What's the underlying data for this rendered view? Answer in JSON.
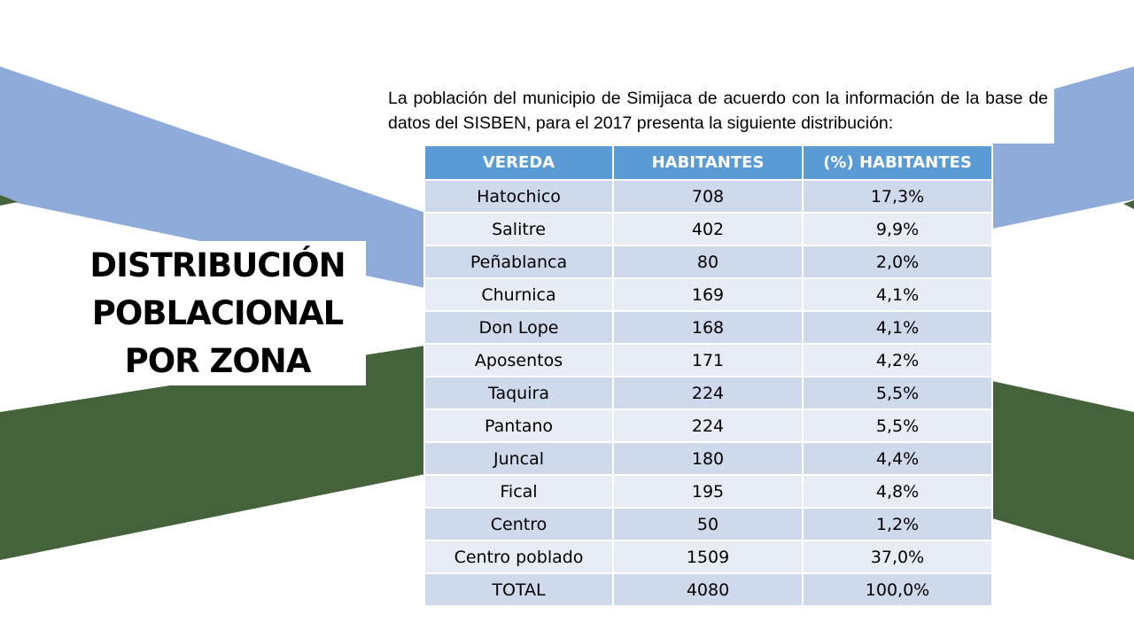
{
  "colors": {
    "blue_band": "#8eabd9",
    "green_band": "#44633a",
    "header_bg": "#5b9bd5",
    "row_odd": "#cfd9ec",
    "row_even": "#e8ecf5"
  },
  "title": {
    "line1": "DISTRIBUCIÓN",
    "line2": "POBLACIONAL",
    "line3": "POR ZONA"
  },
  "intro": {
    "text": "La población del municipio de Simijaca de acuerdo con la información de la base de datos del SISBEN, para el 2017 presenta la siguiente distribución:"
  },
  "table": {
    "headers": [
      "VEREDA",
      "HABITANTES",
      "(%) HABITANTES"
    ],
    "rows": [
      [
        "Hatochico",
        "708",
        "17,3%"
      ],
      [
        "Salitre",
        "402",
        "9,9%"
      ],
      [
        "Peñablanca",
        "80",
        "2,0%"
      ],
      [
        "Churnica",
        "169",
        "4,1%"
      ],
      [
        "Don Lope",
        "168",
        "4,1%"
      ],
      [
        "Aposentos",
        "171",
        "4,2%"
      ],
      [
        "Taquira",
        "224",
        "5,5%"
      ],
      [
        "Pantano",
        "224",
        "5,5%"
      ],
      [
        "Juncal",
        "180",
        "4,4%"
      ],
      [
        "Fical",
        "195",
        "4,8%"
      ],
      [
        "Centro",
        "50",
        "1,2%"
      ],
      [
        "Centro poblado",
        "1509",
        "37,0%"
      ],
      [
        "TOTAL",
        "4080",
        "100,0%"
      ]
    ]
  }
}
